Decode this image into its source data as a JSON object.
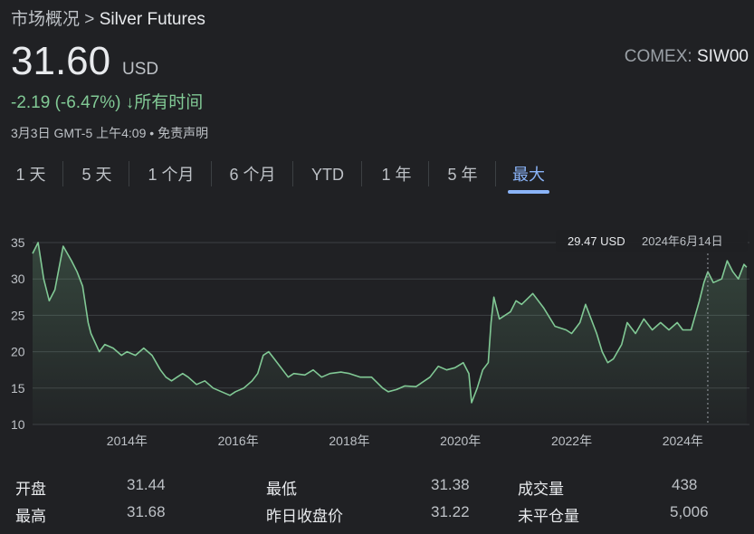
{
  "breadcrumb": {
    "parent": "市场概况",
    "separator": ">",
    "current": "Silver Futures"
  },
  "quote": {
    "price": "31.60",
    "currency": "USD",
    "exchange": "COMEX:",
    "symbol": "SIW00",
    "change": "-2.19 (-6.47%)",
    "change_arrow": "↓",
    "change_period": "所有时间",
    "timestamp": "3月3日 GMT-5 上午4:09",
    "bullet": "•",
    "disclaimer": "免责声明"
  },
  "tabs": [
    {
      "label": "1 天",
      "active": false
    },
    {
      "label": "5 天",
      "active": false
    },
    {
      "label": "1 个月",
      "active": false
    },
    {
      "label": "6 个月",
      "active": false
    },
    {
      "label": "YTD",
      "active": false
    },
    {
      "label": "1 年",
      "active": false
    },
    {
      "label": "5 年",
      "active": false
    },
    {
      "label": "最大",
      "active": true
    }
  ],
  "tooltip": {
    "price": "29.47 USD",
    "date": "2024年6月14日"
  },
  "stats": {
    "open_label": "开盘",
    "open_value": "31.44",
    "high_label": "最高",
    "high_value": "31.68",
    "low_label": "最低",
    "low_value": "31.38",
    "prev_close_label": "昨日收盘价",
    "prev_close_value": "31.22",
    "volume_label": "成交量",
    "volume_value": "438",
    "open_interest_label": "未平仓量",
    "open_interest_value": "5,006"
  },
  "colors": {
    "line": "#81c995",
    "accent": "#8ab4f8",
    "background": "#202124"
  },
  "chart_data": {
    "type": "area",
    "x_tick_labels": [
      "2014年",
      "2016年",
      "2018年",
      "2020年",
      "2022年",
      "2024年"
    ],
    "y_tick_labels": [
      "35",
      "30",
      "25",
      "20",
      "15",
      "10"
    ],
    "ylim": [
      10,
      36
    ],
    "xlim": [
      2012.3,
      2025.2
    ],
    "grid": true,
    "series": [
      {
        "x": [
          2012.3,
          2012.4,
          2012.5,
          2012.6,
          2012.7,
          2012.85,
          2013.0,
          2013.1,
          2013.2,
          2013.3,
          2013.35,
          2013.5,
          2013.6,
          2013.75,
          2013.9,
          2014.0,
          2014.15,
          2014.3,
          2014.45,
          2014.6,
          2014.7,
          2014.8,
          2014.9,
          2015.0,
          2015.1,
          2015.25,
          2015.4,
          2015.55,
          2015.7,
          2015.85,
          2015.95,
          2016.1,
          2016.25,
          2016.35,
          2016.45,
          2016.55,
          2016.65,
          2016.8,
          2016.9,
          2017.0,
          2017.2,
          2017.35,
          2017.5,
          2017.65,
          2017.85,
          2018.0,
          2018.2,
          2018.4,
          2018.6,
          2018.7,
          2018.85,
          2019.0,
          2019.2,
          2019.45,
          2019.6,
          2019.75,
          2019.9,
          2020.05,
          2020.15,
          2020.2,
          2020.3,
          2020.4,
          2020.5,
          2020.55,
          2020.6,
          2020.7,
          2020.9,
          2021.0,
          2021.1,
          2021.3,
          2021.5,
          2021.7,
          2021.9,
          2022.0,
          2022.15,
          2022.25,
          2022.45,
          2022.55,
          2022.65,
          2022.75,
          2022.9,
          2023.0,
          2023.15,
          2023.3,
          2023.45,
          2023.6,
          2023.75,
          2023.9,
          2024.0,
          2024.15,
          2024.3,
          2024.38,
          2024.45,
          2024.55,
          2024.7,
          2024.8,
          2024.9,
          2025.0,
          2025.1,
          2025.15
        ],
        "y": [
          33.5,
          35.0,
          30.0,
          27.0,
          28.5,
          34.5,
          32.5,
          31.0,
          29.0,
          24.0,
          22.5,
          20.0,
          21.0,
          20.5,
          19.5,
          20.0,
          19.5,
          20.5,
          19.5,
          17.5,
          16.5,
          16.0,
          16.5,
          17.0,
          16.5,
          15.5,
          16.0,
          15.0,
          14.5,
          14.0,
          14.5,
          15.0,
          16.0,
          17.0,
          19.5,
          20.0,
          19.0,
          17.5,
          16.5,
          17.0,
          16.8,
          17.5,
          16.5,
          17.0,
          17.2,
          17.0,
          16.5,
          16.5,
          15.0,
          14.5,
          14.8,
          15.3,
          15.2,
          16.5,
          18.0,
          17.5,
          17.8,
          18.5,
          17.0,
          13.0,
          15.0,
          17.5,
          18.5,
          24.0,
          27.5,
          24.5,
          25.5,
          27.0,
          26.5,
          28.0,
          26.0,
          23.5,
          23.0,
          22.5,
          24.0,
          26.5,
          22.5,
          20.0,
          18.5,
          19.0,
          21.0,
          24.0,
          22.5,
          24.5,
          23.0,
          24.0,
          23.0,
          24.0,
          23.0,
          23.0,
          27.0,
          29.5,
          31.0,
          29.5,
          30.0,
          32.5,
          31.0,
          30.0,
          32.0,
          31.6
        ]
      }
    ]
  }
}
